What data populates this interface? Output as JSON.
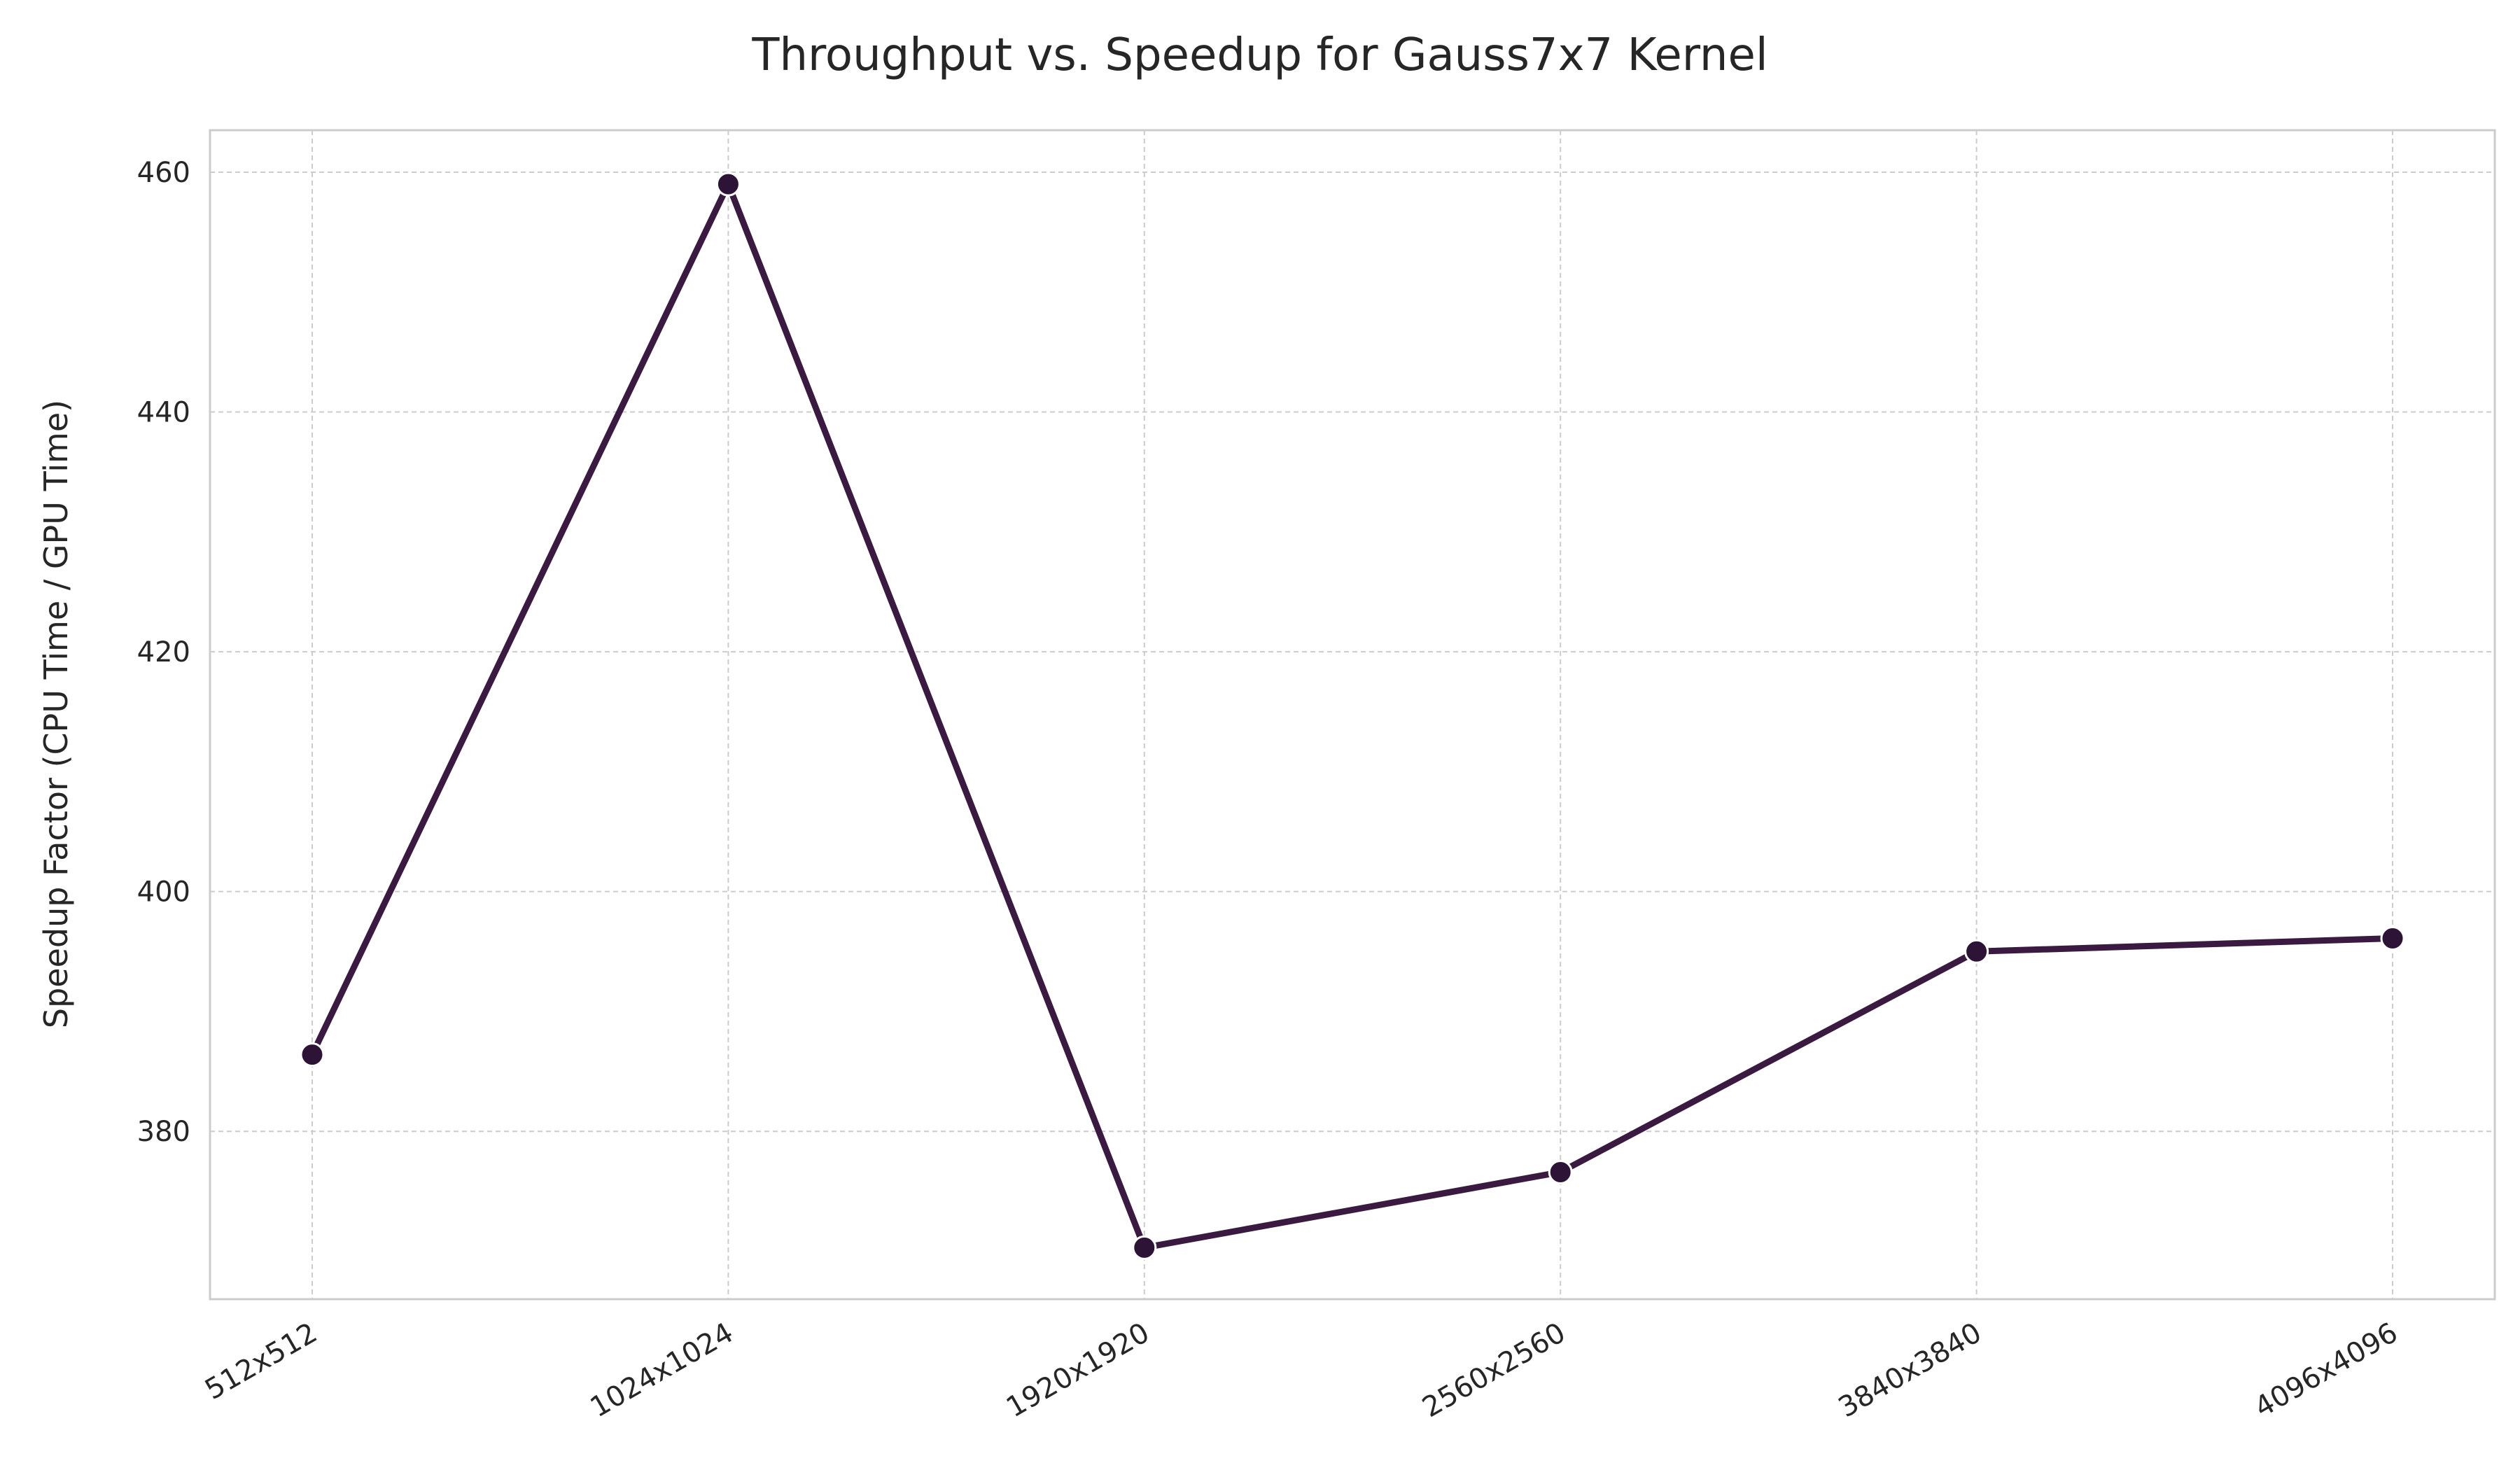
{
  "chart_data": {
    "type": "line",
    "title": "Throughput vs. Speedup for Gauss7x7 Kernel",
    "xlabel": "",
    "ylabel": "Speedup Factor (CPU Time / GPU Time)",
    "categories": [
      "512x512",
      "1024x1024",
      "1920x1920",
      "2560x2560",
      "3840x3840",
      "4096x4096"
    ],
    "series": [
      {
        "values": [
          386.4,
          459.0,
          370.3,
          376.6,
          395.0,
          396.1
        ],
        "color": "#3a1a40"
      }
    ],
    "ylim": [
      366,
      463.5
    ],
    "yticks": [
      380,
      400,
      420,
      440,
      460
    ],
    "grid": true,
    "legend": "none",
    "colors": {
      "line": "#3a1a40",
      "marker": "#2d1436",
      "marker_edge": "#ffffff",
      "grid": "#cccccc",
      "frame": "#cccccc",
      "text": "#262626"
    }
  }
}
